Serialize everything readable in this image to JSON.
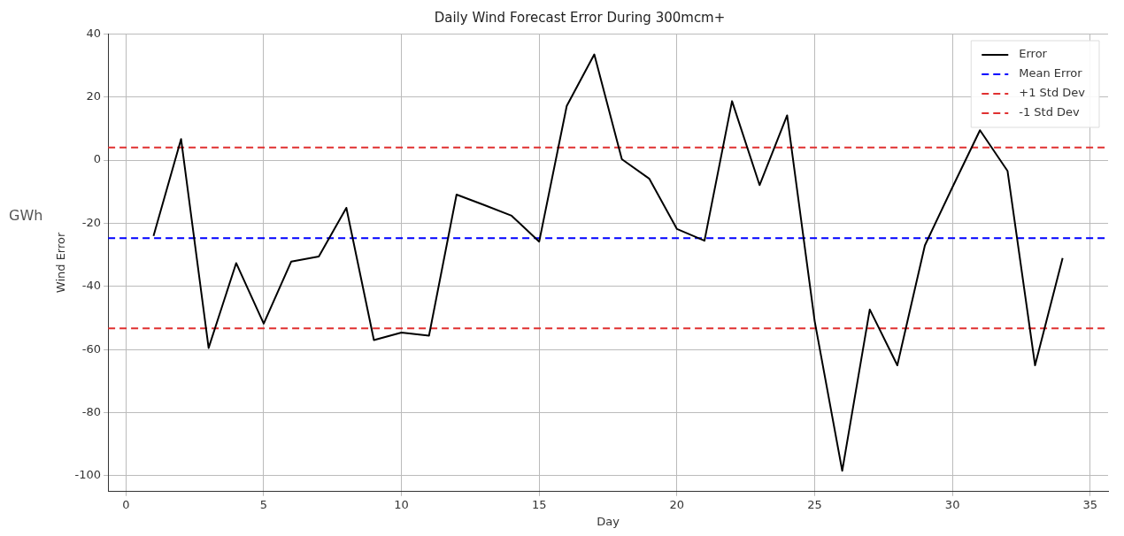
{
  "chart_data": {
    "type": "line",
    "title": "Daily Wind Forecast Error During 300mcm+",
    "xlabel": "Day",
    "ylabel": "Wind Error",
    "annotations": [
      "GWh"
    ],
    "x": [
      1,
      2,
      3,
      4,
      5,
      6,
      7,
      8,
      9,
      10,
      11,
      12,
      13,
      14,
      15,
      16,
      17,
      18,
      19,
      20,
      21,
      22,
      23,
      24,
      25,
      26,
      27,
      28,
      29,
      30,
      31,
      32,
      33,
      34
    ],
    "series": [
      {
        "name": "Error",
        "color": "#000000",
        "values": [
          -24,
          6.7,
          -59.5,
          -32.6,
          -51.8,
          -32.1,
          -30.5,
          -15.1,
          -57,
          -54.6,
          -55.6,
          -10.9,
          -14.2,
          -17.6,
          -25.8,
          17.2,
          33.5,
          0.3,
          -5.9,
          -21.8,
          -25.5,
          18.7,
          -7.9,
          14.2,
          -51,
          -98.4,
          -47.3,
          -65,
          -27,
          -8.6,
          9.5,
          -3.4,
          -65,
          -31
        ]
      }
    ],
    "ref_lines": [
      {
        "axis": "y",
        "value": -24.7,
        "label": "Mean Error",
        "color": "#0000ff",
        "line_style": "dashed"
      },
      {
        "axis": "y",
        "value": 4,
        "label": "+1 Std Dev",
        "color": "#e03030",
        "line_style": "dashed"
      },
      {
        "axis": "y",
        "value": -53.3,
        "label": "-1 Std Dev",
        "color": "#e03030",
        "line_style": "dashed"
      }
    ],
    "xlim": [
      -0.65,
      35.65
    ],
    "xticks": [
      0,
      5,
      10,
      15,
      20,
      25,
      30,
      35
    ],
    "ylim": [
      -105,
      40.1
    ],
    "yticks": [
      -100,
      -80,
      -60,
      -40,
      -20,
      0,
      20,
      40
    ],
    "grid": true,
    "legend": "top right",
    "line_style": "solid",
    "marker": "none"
  }
}
